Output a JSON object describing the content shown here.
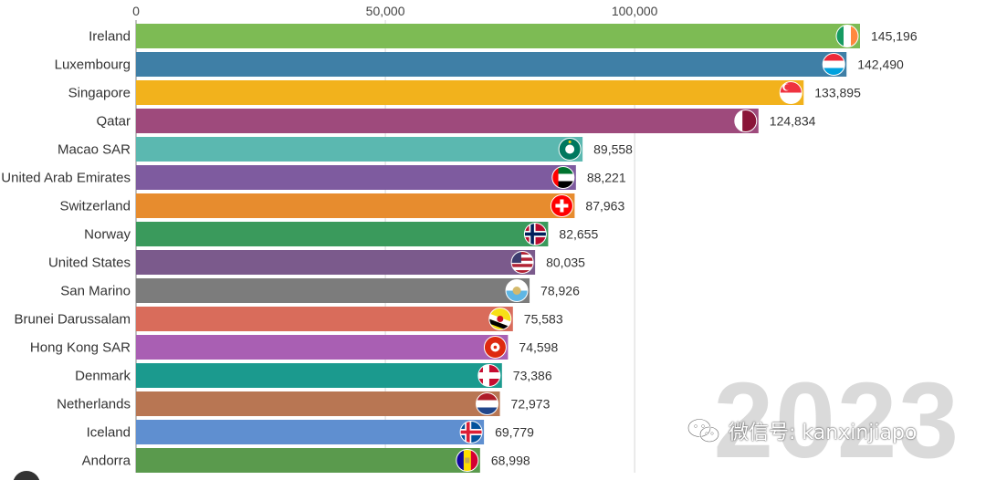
{
  "chart_data": {
    "type": "bar",
    "orientation": "horizontal",
    "title": "",
    "xlabel": "",
    "ylabel": "",
    "xlim": [
      0,
      145196
    ],
    "ticks": [
      {
        "value": 0,
        "label": "0"
      },
      {
        "value": 50000,
        "label": "50,000"
      },
      {
        "value": 100000,
        "label": "100,000"
      }
    ],
    "grid": true,
    "bars": [
      {
        "country": "Ireland",
        "value": 145196,
        "value_label": "145,196",
        "color": "#7dbb54",
        "flag": "ireland-flag"
      },
      {
        "country": "Luxembourg",
        "value": 142490,
        "value_label": "142,490",
        "color": "#3f7fa6",
        "flag": "luxembourg-flag"
      },
      {
        "country": "Singapore",
        "value": 133895,
        "value_label": "133,895",
        "color": "#f2b21c",
        "flag": "singapore-flag"
      },
      {
        "country": "Qatar",
        "value": 124834,
        "value_label": "124,834",
        "color": "#9e4a7c",
        "flag": "qatar-flag"
      },
      {
        "country": "Macao SAR",
        "value": 89558,
        "value_label": "89,558",
        "color": "#5bb8b0",
        "flag": "macao-flag"
      },
      {
        "country": "United Arab Emirates",
        "value": 88221,
        "value_label": "88,221",
        "color": "#7e5b9f",
        "flag": "uae-flag"
      },
      {
        "country": "Switzerland",
        "value": 87963,
        "value_label": "87,963",
        "color": "#e78c2e",
        "flag": "switzerland-flag"
      },
      {
        "country": "Norway",
        "value": 82655,
        "value_label": "82,655",
        "color": "#3a9a5c",
        "flag": "norway-flag"
      },
      {
        "country": "United States",
        "value": 80035,
        "value_label": "80,035",
        "color": "#7b5a8c",
        "flag": "usa-flag"
      },
      {
        "country": "San Marino",
        "value": 78926,
        "value_label": "78,926",
        "color": "#7c7c7c",
        "flag": "san-marino-flag"
      },
      {
        "country": "Brunei Darussalam",
        "value": 75583,
        "value_label": "75,583",
        "color": "#d96c5b",
        "flag": "brunei-flag"
      },
      {
        "country": "Hong Kong SAR",
        "value": 74598,
        "value_label": "74,598",
        "color": "#a95fb3",
        "flag": "hong-kong-flag"
      },
      {
        "country": "Denmark",
        "value": 73386,
        "value_label": "73,386",
        "color": "#1b9a8e",
        "flag": "denmark-flag"
      },
      {
        "country": "Netherlands",
        "value": 72973,
        "value_label": "72,973",
        "color": "#b87653",
        "flag": "netherlands-flag"
      },
      {
        "country": "Iceland",
        "value": 69779,
        "value_label": "69,779",
        "color": "#5f8fd0",
        "flag": "iceland-flag"
      },
      {
        "country": "Andorra",
        "value": 68998,
        "value_label": "68,998",
        "color": "#5a9a4d",
        "flag": "andorra-flag"
      }
    ]
  },
  "year": "2023",
  "watermark": {
    "text": "微信号: kanxinjiapo",
    "icon": "wechat-icon"
  }
}
